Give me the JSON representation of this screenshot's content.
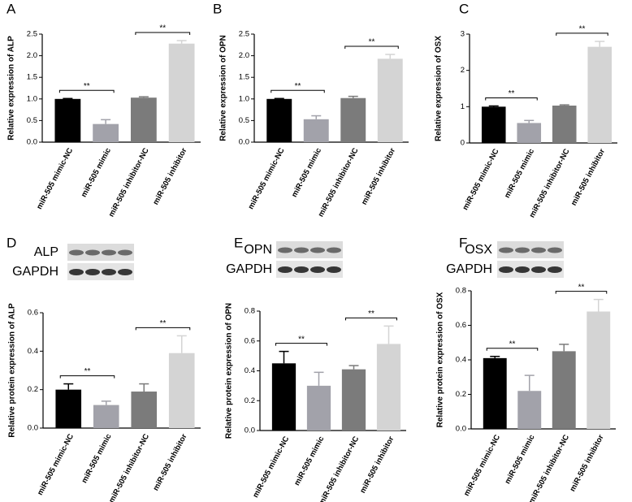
{
  "chart_data": [
    {
      "type": "bar",
      "panel": "A",
      "ylabel": "Relative expression of ALP",
      "categories": [
        "miR-505 mimic-NC",
        "miR-505 mimic",
        "miR-505 inhibitor-NC",
        "miR-505 inhibitor"
      ],
      "values": [
        1.0,
        0.42,
        1.03,
        2.28
      ],
      "errors": [
        0.01,
        0.1,
        0.02,
        0.07
      ],
      "colors": [
        "#000000",
        "#a2a2aa",
        "#7b7b7b",
        "#d4d4d4"
      ],
      "ylim": [
        0,
        2.5
      ],
      "yticks": [
        {
          "value": 0,
          "label": "0.0"
        },
        0.5,
        {
          "value": 1,
          "label": "1.0"
        },
        1.5,
        {
          "value": 2,
          "label": "2.0"
        },
        2.5
      ],
      "annotations": [
        "**",
        "**"
      ]
    },
    {
      "type": "bar",
      "panel": "B",
      "ylabel": "Relative expression of OPN",
      "categories": [
        "miR-505 mimic-NC",
        "miR-505 mimic",
        "miR-505 inhibitor-NC",
        "miR-505 inhibitor"
      ],
      "values": [
        1.0,
        0.53,
        1.02,
        1.93
      ],
      "errors": [
        0.01,
        0.08,
        0.04,
        0.1
      ],
      "colors": [
        "#000000",
        "#a2a2aa",
        "#7b7b7b",
        "#d4d4d4"
      ],
      "ylim": [
        0,
        2.5
      ],
      "yticks": [
        {
          "value": 0,
          "label": "0.0"
        },
        0.5,
        {
          "value": 1,
          "label": "1.0"
        },
        1.5,
        {
          "value": 2,
          "label": "2.0"
        },
        2.5
      ],
      "annotations": [
        "**",
        "**"
      ]
    },
    {
      "type": "bar",
      "panel": "C",
      "ylabel": "Relative expression of OSX",
      "categories": [
        "miR-505 mimic-NC",
        "miR-505 mimic",
        "miR-505 inhibitor-NC",
        "miR-505 inhibitor"
      ],
      "values": [
        1.0,
        0.55,
        1.03,
        2.65
      ],
      "errors": [
        0.02,
        0.07,
        0.02,
        0.15
      ],
      "colors": [
        "#000000",
        "#a2a2aa",
        "#7b7b7b",
        "#d4d4d4"
      ],
      "ylim": [
        0,
        3
      ],
      "yticks": [
        0,
        1,
        2,
        3
      ],
      "annotations": [
        "**",
        "**"
      ]
    },
    {
      "type": "bar",
      "panel": "D",
      "ylabel": "Relative protein expression of ALP",
      "blot_labels": [
        "ALP",
        "GAPDH"
      ],
      "categories": [
        "miR-505 mimic-NC",
        "miR-505 mimic",
        "miR-505 inhibitor-NC",
        "miR-505 inhibitor"
      ],
      "values": [
        0.2,
        0.12,
        0.19,
        0.39
      ],
      "errors": [
        0.03,
        0.02,
        0.04,
        0.09
      ],
      "colors": [
        "#000000",
        "#a2a2aa",
        "#7b7b7b",
        "#d4d4d4"
      ],
      "ylim": [
        0,
        0.6
      ],
      "yticks": [
        {
          "value": 0,
          "label": "0.0"
        },
        0.2,
        0.4,
        0.6
      ],
      "annotations": [
        "**",
        "**"
      ]
    },
    {
      "type": "bar",
      "panel": "E",
      "ylabel": "Relative protein expression of OPN",
      "blot_labels": [
        "OPN",
        "GAPDH"
      ],
      "categories": [
        "miR-505 mimic-NC",
        "miR-505 mimic",
        "miR-505 inhibitor-NC",
        "miR-505 inhibitor"
      ],
      "values": [
        0.45,
        0.3,
        0.41,
        0.58
      ],
      "errors": [
        0.08,
        0.09,
        0.025,
        0.12
      ],
      "colors": [
        "#000000",
        "#a2a2aa",
        "#7b7b7b",
        "#d4d4d4"
      ],
      "ylim": [
        0,
        0.8
      ],
      "yticks": [
        {
          "value": 0,
          "label": "0.0"
        },
        0.2,
        0.4,
        0.6,
        0.8
      ],
      "annotations": [
        "**",
        "**"
      ]
    },
    {
      "type": "bar",
      "panel": "F",
      "ylabel": "Relative protein expression of OSX",
      "blot_labels": [
        "OSX",
        "GAPDH"
      ],
      "categories": [
        "miR-505 mimic-NC",
        "miR-505 mimic",
        "miR-505 inhibitor-NC",
        "miR-505 inhibitor"
      ],
      "values": [
        0.41,
        0.22,
        0.45,
        0.68
      ],
      "errors": [
        0.01,
        0.09,
        0.04,
        0.07
      ],
      "colors": [
        "#000000",
        "#a2a2aa",
        "#7b7b7b",
        "#d4d4d4"
      ],
      "ylim": [
        0,
        0.8
      ],
      "yticks": [
        {
          "value": 0,
          "label": "0.0"
        },
        0.2,
        0.4,
        0.6,
        0.8
      ],
      "annotations": [
        "**",
        "**"
      ]
    }
  ]
}
